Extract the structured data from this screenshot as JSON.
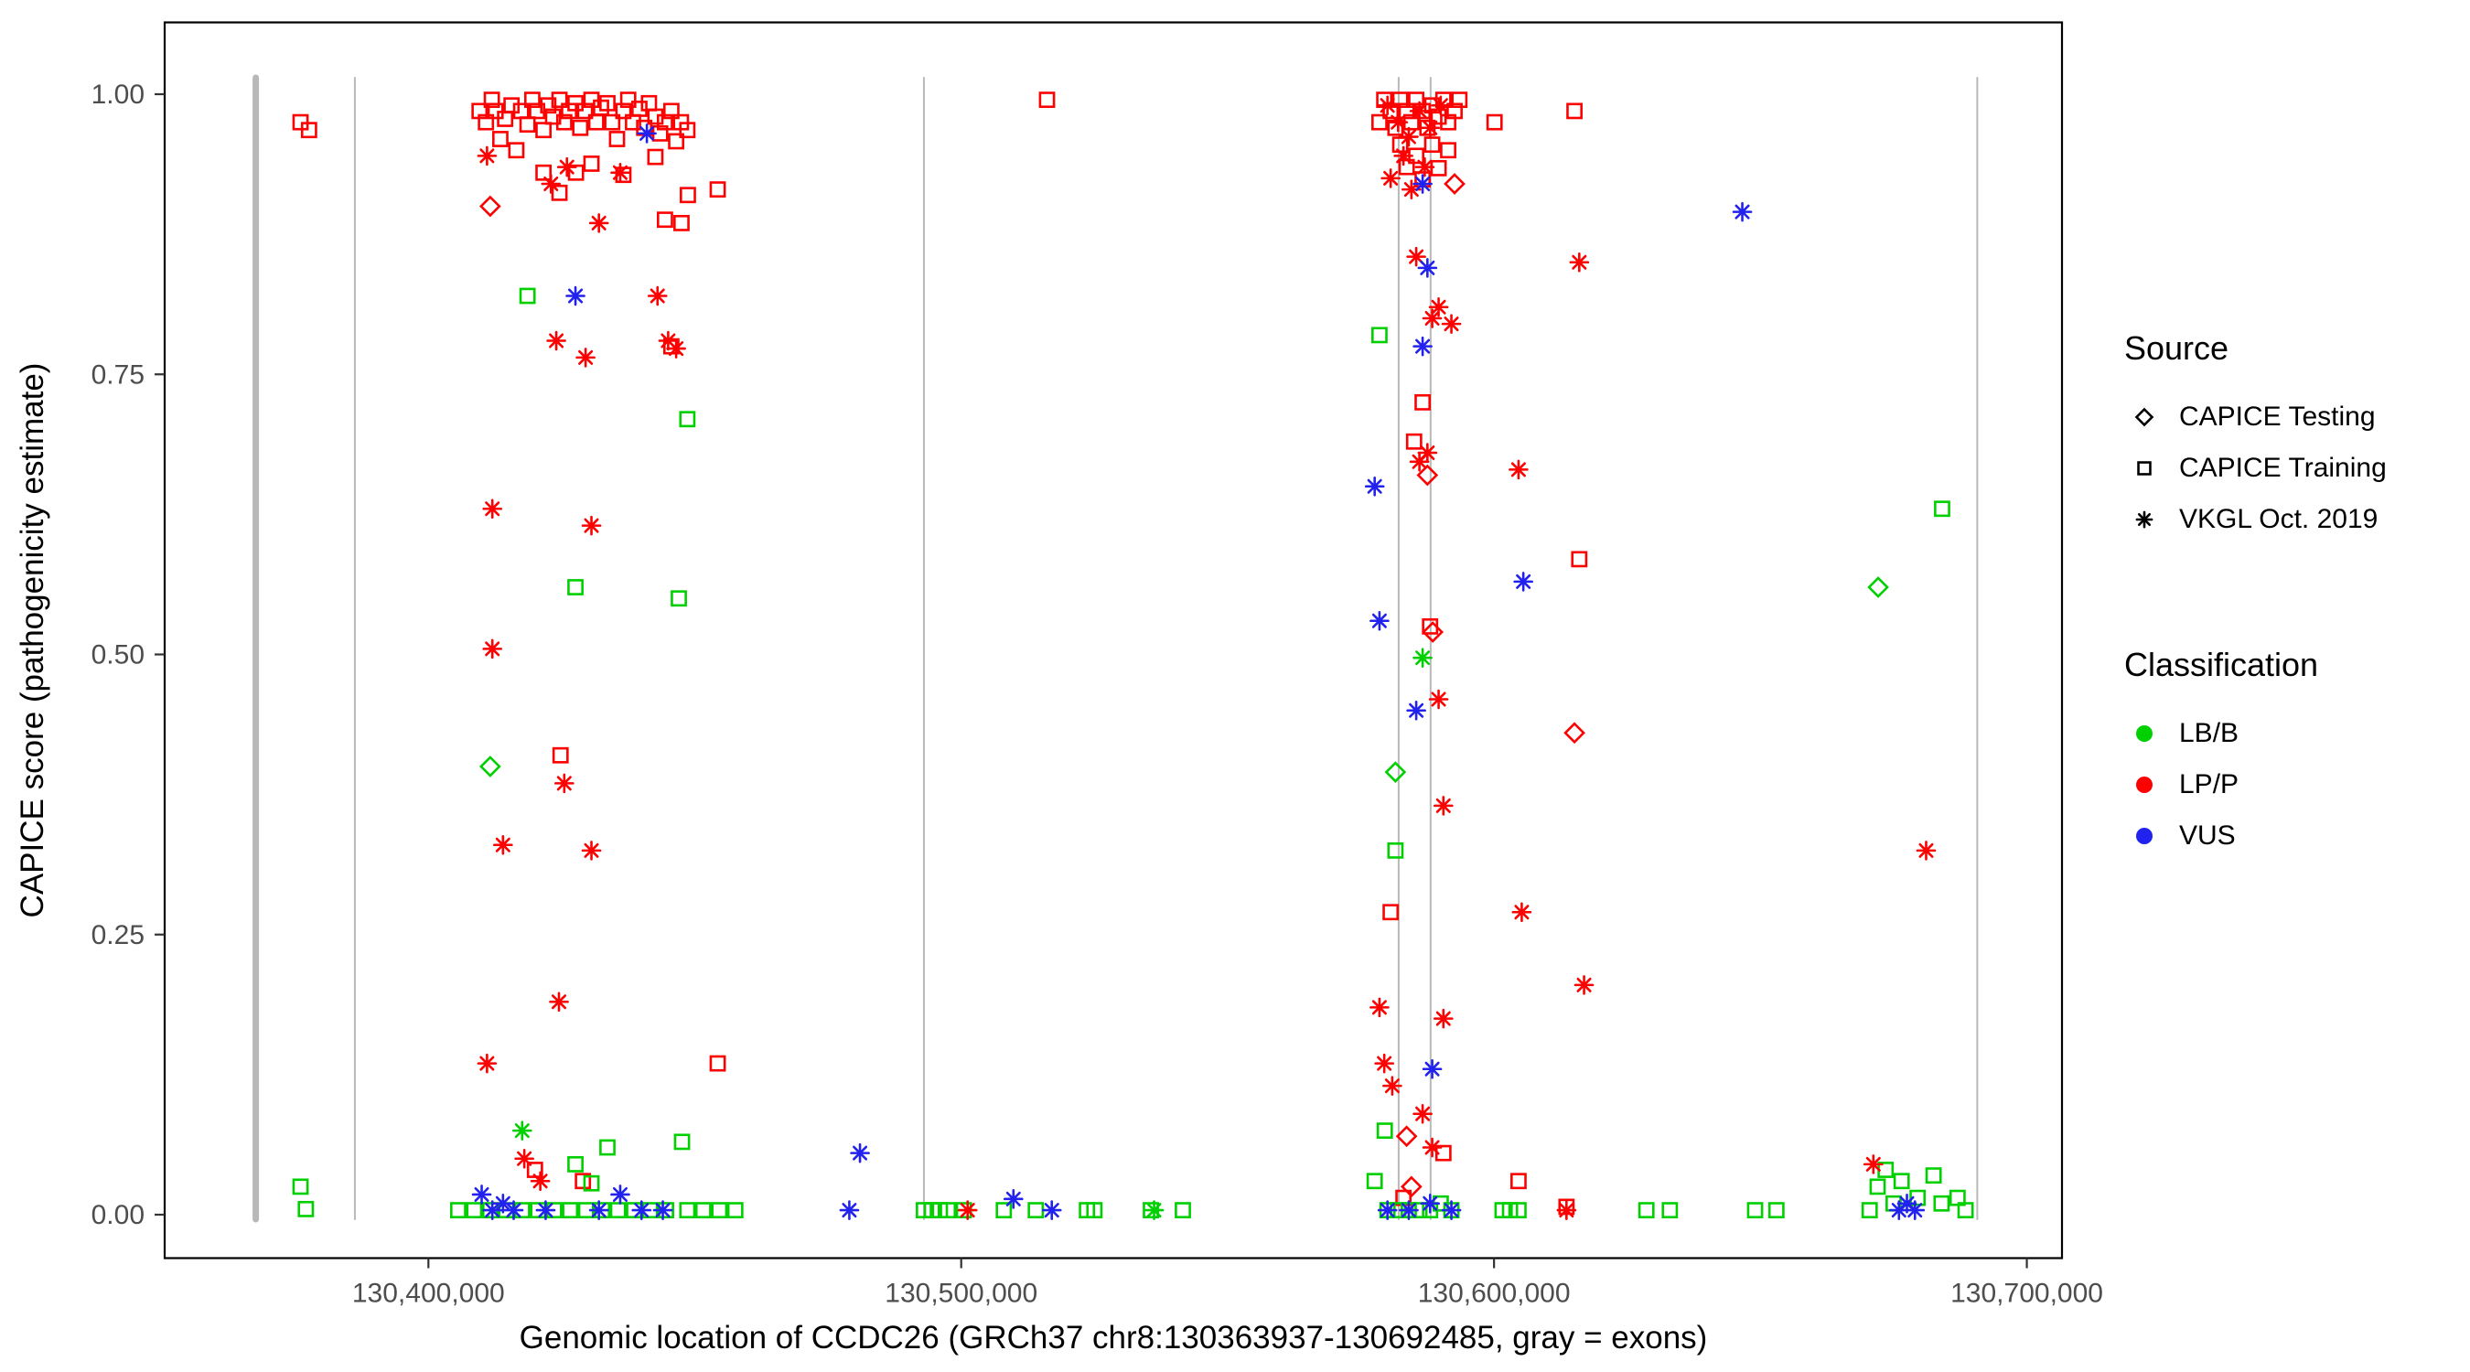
{
  "chart_data": {
    "type": "scatter",
    "title": "",
    "xlabel": "Genomic location of CCDC26 (GRCh37 chr8:130363937-130692485, gray = exons)",
    "ylabel": "CAPICE score (pathogenicity estimate)",
    "xlim": [
      130350500,
      130706600
    ],
    "ylim": [
      0,
      1
    ],
    "grid": "off",
    "x_ticks": {
      "values": [
        130400000,
        130500000,
        130600000,
        130700000
      ],
      "labels": [
        "130,400,000",
        "130,500,000",
        "130,600,000",
        "130,700,000"
      ]
    },
    "y_ticks": {
      "values": [
        0,
        0.25,
        0.5,
        0.75,
        1
      ],
      "labels": [
        "0.00",
        "0.25",
        "0.50",
        "0.75",
        "1.00"
      ]
    },
    "colors": {
      "LB/B": "#00d000",
      "LP/P": "#fd0000",
      "VUS": "#2222ee",
      "exon": "#b8b8b8"
    },
    "exons": [
      {
        "x": 130367600,
        "w": 7
      },
      {
        "x": 130386200,
        "w": 2
      },
      {
        "x": 130493000,
        "w": 2
      },
      {
        "x": 130582100,
        "w": 2
      },
      {
        "x": 130588100,
        "w": 2
      },
      {
        "x": 130690700,
        "w": 2
      }
    ],
    "series": [
      {
        "source": "CAPICE Training",
        "classification": "LP/P",
        "shape": "square",
        "points": [
          [
            130409600,
            0.985
          ],
          [
            130410800,
            0.975
          ],
          [
            130411900,
            0.995
          ],
          [
            130412600,
            0.985
          ],
          [
            130413500,
            0.96
          ],
          [
            130414400,
            0.978
          ],
          [
            130415600,
            0.99
          ],
          [
            130416500,
            0.95
          ],
          [
            130417400,
            0.985
          ],
          [
            130418600,
            0.973
          ],
          [
            130419500,
            0.995
          ],
          [
            130420400,
            0.985
          ],
          [
            130421600,
            0.968
          ],
          [
            130422500,
            0.99
          ],
          [
            130423400,
            0.98
          ],
          [
            130424600,
            0.995
          ],
          [
            130425500,
            0.975
          ],
          [
            130426400,
            0.985
          ],
          [
            130427600,
            0.992
          ],
          [
            130428500,
            0.97
          ],
          [
            130429400,
            0.985
          ],
          [
            130430600,
            0.995
          ],
          [
            130431500,
            0.975
          ],
          [
            130432400,
            0.988
          ],
          [
            130433600,
            0.992
          ],
          [
            130434500,
            0.975
          ],
          [
            130435400,
            0.96
          ],
          [
            130436600,
            0.985
          ],
          [
            130437500,
            0.995
          ],
          [
            130438400,
            0.975
          ],
          [
            130439600,
            0.987
          ],
          [
            130440500,
            0.97
          ],
          [
            130441400,
            0.992
          ],
          [
            130442600,
            0.98
          ],
          [
            130443500,
            0.965
          ],
          [
            130444400,
            0.975
          ],
          [
            130445600,
            0.985
          ],
          [
            130446500,
            0.958
          ],
          [
            130447400,
            0.975
          ],
          [
            130448600,
            0.968
          ],
          [
            130421600,
            0.93
          ],
          [
            130424600,
            0.912
          ],
          [
            130427700,
            0.93
          ],
          [
            130430600,
            0.938
          ],
          [
            130436600,
            0.928
          ],
          [
            130442600,
            0.944
          ],
          [
            130448700,
            0.91
          ],
          [
            130454300,
            0.915
          ],
          [
            130444400,
            0.888
          ],
          [
            130447500,
            0.885
          ],
          [
            130445600,
            0.775
          ],
          [
            130424800,
            0.41
          ],
          [
            130454300,
            0.135
          ],
          [
            130376000,
            0.975
          ],
          [
            130377600,
            0.968
          ],
          [
            130420000,
            0.04
          ],
          [
            130429000,
            0.03
          ],
          [
            130516100,
            0.995
          ],
          [
            130578500,
            0.975
          ],
          [
            130579400,
            0.995
          ],
          [
            130580600,
            0.985
          ],
          [
            130581500,
            0.97
          ],
          [
            130582400,
            0.995
          ],
          [
            130583600,
            0.985
          ],
          [
            130584500,
            0.975
          ],
          [
            130585400,
            0.995
          ],
          [
            130586600,
            0.985
          ],
          [
            130587500,
            0.97
          ],
          [
            130588400,
            0.99
          ],
          [
            130589600,
            0.98
          ],
          [
            130590500,
            0.995
          ],
          [
            130591400,
            0.975
          ],
          [
            130592600,
            0.985
          ],
          [
            130593500,
            0.995
          ],
          [
            130582400,
            0.955
          ],
          [
            130585400,
            0.945
          ],
          [
            130588400,
            0.955
          ],
          [
            130591400,
            0.95
          ],
          [
            130583600,
            0.935
          ],
          [
            130586600,
            0.924
          ],
          [
            130589600,
            0.934
          ],
          [
            130586600,
            0.725
          ],
          [
            130585000,
            0.69
          ],
          [
            130580600,
            0.27
          ],
          [
            130588000,
            0.525
          ],
          [
            130590500,
            0.055
          ],
          [
            130583000,
            0.015
          ],
          [
            130600100,
            0.975
          ],
          [
            130604600,
            0.03
          ],
          [
            130615100,
            0.985
          ],
          [
            130616000,
            0.585
          ],
          [
            130613600,
            0.007
          ]
        ]
      },
      {
        "source": "CAPICE Training",
        "classification": "LB/B",
        "shape": "square",
        "points": [
          [
            130376000,
            0.025
          ],
          [
            130377000,
            0.005
          ],
          [
            130418600,
            0.82
          ],
          [
            130427600,
            0.56
          ],
          [
            130447000,
            0.55
          ],
          [
            130448600,
            0.71
          ],
          [
            130405600,
            0.004
          ],
          [
            130408600,
            0.004
          ],
          [
            130411600,
            0.004
          ],
          [
            130414600,
            0.004
          ],
          [
            130417600,
            0.004
          ],
          [
            130420600,
            0.004
          ],
          [
            130423600,
            0.004
          ],
          [
            130426600,
            0.004
          ],
          [
            130429600,
            0.004
          ],
          [
            130432600,
            0.004
          ],
          [
            130433600,
            0.06
          ],
          [
            130435600,
            0.004
          ],
          [
            130438600,
            0.004
          ],
          [
            130441600,
            0.004
          ],
          [
            130444600,
            0.004
          ],
          [
            130447600,
            0.065
          ],
          [
            130448600,
            0.004
          ],
          [
            130451600,
            0.004
          ],
          [
            130454600,
            0.004
          ],
          [
            130457600,
            0.004
          ],
          [
            130427600,
            0.045
          ],
          [
            130430600,
            0.028
          ],
          [
            130493000,
            0.004
          ],
          [
            130494500,
            0.004
          ],
          [
            130496000,
            0.004
          ],
          [
            130497500,
            0.004
          ],
          [
            130500500,
            0.004
          ],
          [
            130508000,
            0.004
          ],
          [
            130514000,
            0.004
          ],
          [
            130523600,
            0.004
          ],
          [
            130525000,
            0.004
          ],
          [
            130535600,
            0.004
          ],
          [
            130541600,
            0.004
          ],
          [
            130578500,
            0.785
          ],
          [
            130581500,
            0.325
          ],
          [
            130579500,
            0.075
          ],
          [
            130577600,
            0.03
          ],
          [
            130580000,
            0.004
          ],
          [
            130582000,
            0.004
          ],
          [
            130584000,
            0.004
          ],
          [
            130586000,
            0.004
          ],
          [
            130588000,
            0.004
          ],
          [
            130590000,
            0.01
          ],
          [
            130592000,
            0.004
          ],
          [
            130601600,
            0.004
          ],
          [
            130603000,
            0.004
          ],
          [
            130604600,
            0.004
          ],
          [
            130628600,
            0.004
          ],
          [
            130633000,
            0.004
          ],
          [
            130649000,
            0.004
          ],
          [
            130653000,
            0.004
          ],
          [
            130684100,
            0.63
          ],
          [
            130672000,
            0.025
          ],
          [
            130673500,
            0.04
          ],
          [
            130675000,
            0.01
          ],
          [
            130676500,
            0.03
          ],
          [
            130679500,
            0.015
          ],
          [
            130682500,
            0.035
          ],
          [
            130684000,
            0.01
          ],
          [
            130687000,
            0.015
          ],
          [
            130688500,
            0.004
          ],
          [
            130670500,
            0.004
          ]
        ]
      },
      {
        "source": "VKGL Oct. 2019",
        "classification": "LP/P",
        "shape": "asterisk",
        "points": [
          [
            130411000,
            0.945
          ],
          [
            130423000,
            0.92
          ],
          [
            130426000,
            0.935
          ],
          [
            130432000,
            0.885
          ],
          [
            130436000,
            0.93
          ],
          [
            130424000,
            0.78
          ],
          [
            130429500,
            0.765
          ],
          [
            130445000,
            0.78
          ],
          [
            130446500,
            0.773
          ],
          [
            130443000,
            0.82
          ],
          [
            130412000,
            0.63
          ],
          [
            130430600,
            0.615
          ],
          [
            130412000,
            0.505
          ],
          [
            130425500,
            0.385
          ],
          [
            130430600,
            0.325
          ],
          [
            130414000,
            0.33
          ],
          [
            130424500,
            0.19
          ],
          [
            130411000,
            0.135
          ],
          [
            130418000,
            0.05
          ],
          [
            130421000,
            0.03
          ],
          [
            130501200,
            0.004
          ],
          [
            130580000,
            0.99
          ],
          [
            130582000,
            0.975
          ],
          [
            130584000,
            0.962
          ],
          [
            130586000,
            0.985
          ],
          [
            130588000,
            0.97
          ],
          [
            130590000,
            0.99
          ],
          [
            130583000,
            0.945
          ],
          [
            130587000,
            0.935
          ],
          [
            130580600,
            0.925
          ],
          [
            130584500,
            0.915
          ],
          [
            130585400,
            0.855
          ],
          [
            130589600,
            0.81
          ],
          [
            130588400,
            0.8
          ],
          [
            130592000,
            0.795
          ],
          [
            130587500,
            0.68
          ],
          [
            130586000,
            0.672
          ],
          [
            130604600,
            0.665
          ],
          [
            130589600,
            0.46
          ],
          [
            130590500,
            0.365
          ],
          [
            130578500,
            0.185
          ],
          [
            130590500,
            0.175
          ],
          [
            130579400,
            0.135
          ],
          [
            130580900,
            0.115
          ],
          [
            130586600,
            0.09
          ],
          [
            130588400,
            0.06
          ],
          [
            130605200,
            0.27
          ],
          [
            130616000,
            0.85
          ],
          [
            130616900,
            0.205
          ],
          [
            130613600,
            0.004
          ],
          [
            130671200,
            0.045
          ],
          [
            130681100,
            0.325
          ]
        ]
      },
      {
        "source": "VKGL Oct. 2019",
        "classification": "LB/B",
        "shape": "asterisk",
        "points": [
          [
            130417600,
            0.075
          ],
          [
            130536200,
            0.004
          ],
          [
            130586600,
            0.497
          ]
        ]
      },
      {
        "source": "VKGL Oct. 2019",
        "classification": "VUS",
        "shape": "asterisk",
        "points": [
          [
            130427600,
            0.82
          ],
          [
            130441000,
            0.965
          ],
          [
            130410000,
            0.018
          ],
          [
            130412000,
            0.004
          ],
          [
            130414000,
            0.01
          ],
          [
            130416000,
            0.004
          ],
          [
            130422000,
            0.004
          ],
          [
            130432000,
            0.004
          ],
          [
            130436000,
            0.018
          ],
          [
            130440000,
            0.004
          ],
          [
            130444000,
            0.004
          ],
          [
            130481000,
            0.055
          ],
          [
            130479000,
            0.004
          ],
          [
            130509800,
            0.014
          ],
          [
            130517000,
            0.004
          ],
          [
            130586600,
            0.92
          ],
          [
            130587500,
            0.845
          ],
          [
            130586600,
            0.775
          ],
          [
            130577600,
            0.65
          ],
          [
            130605500,
            0.565
          ],
          [
            130578500,
            0.53
          ],
          [
            130585400,
            0.45
          ],
          [
            130588400,
            0.13
          ],
          [
            130580000,
            0.004
          ],
          [
            130584000,
            0.004
          ],
          [
            130588000,
            0.01
          ],
          [
            130592000,
            0.004
          ],
          [
            130646600,
            0.895
          ],
          [
            130676000,
            0.004
          ],
          [
            130677500,
            0.01
          ],
          [
            130679000,
            0.004
          ]
        ]
      },
      {
        "source": "CAPICE Testing",
        "classification": "LP/P",
        "shape": "diamond",
        "points": [
          [
            130411600,
            0.9
          ],
          [
            130592600,
            0.92
          ],
          [
            130587500,
            0.66
          ],
          [
            130588500,
            0.52
          ],
          [
            130615100,
            0.43
          ],
          [
            130583600,
            0.07
          ],
          [
            130584500,
            0.025
          ]
        ]
      },
      {
        "source": "CAPICE Testing",
        "classification": "LB/B",
        "shape": "diamond",
        "points": [
          [
            130411600,
            0.4
          ],
          [
            130581500,
            0.395
          ],
          [
            130672100,
            0.56
          ]
        ]
      }
    ]
  },
  "legend": {
    "source_title": "Source",
    "source_items": [
      {
        "label": "CAPICE Testing",
        "shape": "diamond"
      },
      {
        "label": "CAPICE Training",
        "shape": "square"
      },
      {
        "label": "VKGL Oct. 2019",
        "shape": "asterisk"
      }
    ],
    "classification_title": "Classification",
    "classification_items": [
      {
        "label": "LB/B",
        "color": "#00d000"
      },
      {
        "label": "LP/P",
        "color": "#fd0000"
      },
      {
        "label": "VUS",
        "color": "#2222ee"
      }
    ]
  }
}
